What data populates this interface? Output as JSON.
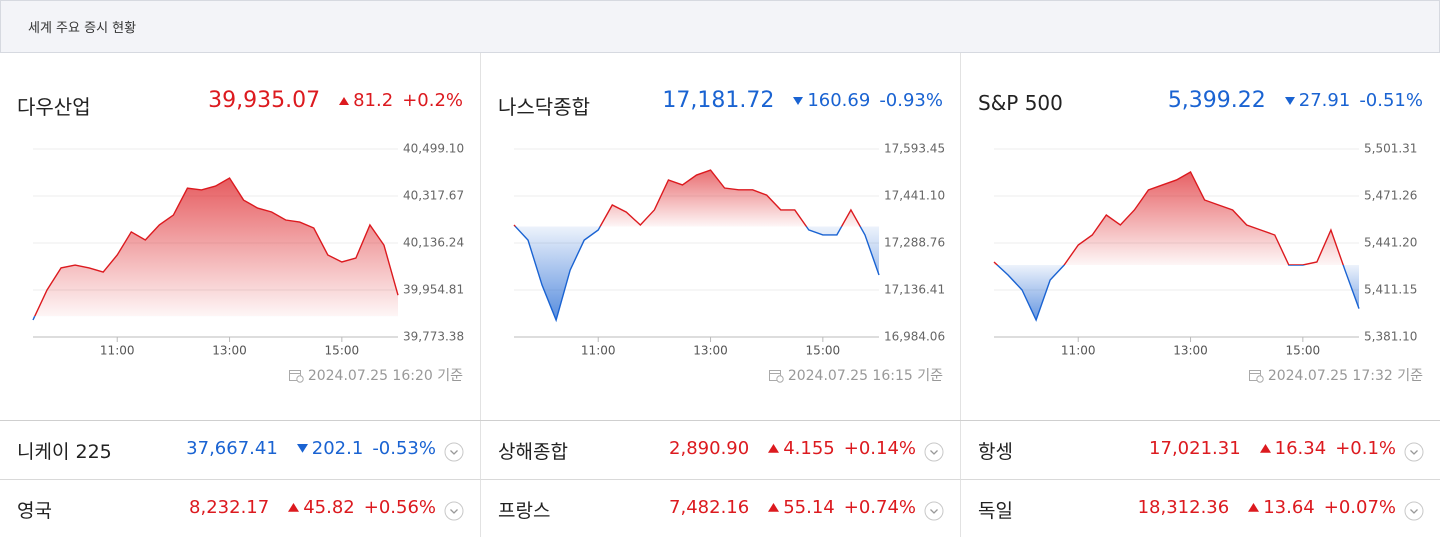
{
  "colors": {
    "up": "#dc1a1f",
    "down": "#1a63d2"
  },
  "header": {
    "title": "세계 주요 증시 현황"
  },
  "panels": [
    {
      "name": "다우산업",
      "price": "39,935.07",
      "change": "81.2",
      "change_pct": "+0.2%",
      "direction": "up",
      "updated": "2024.07.25 16:20 기준",
      "chart": {
        "type": "area",
        "x": [
          "09:30",
          "09:45",
          "10:00",
          "10:15",
          "10:30",
          "10:45",
          "11:00",
          "11:15",
          "11:30",
          "11:45",
          "12:00",
          "12:15",
          "12:30",
          "12:45",
          "13:00",
          "13:15",
          "13:30",
          "13:45",
          "14:00",
          "14:15",
          "14:30",
          "14:45",
          "15:00",
          "15:15",
          "15:30",
          "15:45",
          "16:00"
        ],
        "values": [
          39839,
          39955,
          40040,
          40051,
          40040,
          40024,
          40090,
          40179,
          40148,
          40206,
          40244,
          40348,
          40341,
          40356,
          40387,
          40302,
          40271,
          40256,
          40225,
          40217,
          40194,
          40090,
          40063,
          40078,
          40206,
          40128,
          39935
        ],
        "baseline": 39853.87,
        "xlim": [
          "09:30",
          "16:00"
        ],
        "xticks": [
          "11:00",
          "13:00",
          "15:00"
        ],
        "ylim": [
          39773.38,
          40499.1
        ],
        "yticks": [
          {
            "value": 40499.1,
            "label": "40,499.10"
          },
          {
            "value": 40317.67,
            "label": "40,317.67"
          },
          {
            "value": 40136.24,
            "label": "40,136.24"
          },
          {
            "value": 39954.81,
            "label": "39,954.81"
          },
          {
            "value": 39773.38,
            "label": "39,773.38"
          }
        ]
      }
    },
    {
      "name": "나스닥종합",
      "price": "17,181.72",
      "change": "160.69",
      "change_pct": "-0.93%",
      "direction": "down",
      "updated": "2024.07.25 16:15 기준",
      "chart": {
        "type": "area",
        "x": [
          "09:30",
          "09:45",
          "10:00",
          "10:15",
          "10:30",
          "10:45",
          "11:00",
          "11:15",
          "11:30",
          "11:45",
          "12:00",
          "12:15",
          "12:30",
          "12:45",
          "13:00",
          "13:15",
          "13:30",
          "13:45",
          "14:00",
          "14:15",
          "14:30",
          "14:45",
          "15:00",
          "15:15",
          "15:30",
          "15:45",
          "16:00"
        ],
        "values": [
          17347,
          17298,
          17152,
          17039,
          17201,
          17298,
          17331,
          17412,
          17389,
          17347,
          17396,
          17493,
          17477,
          17509,
          17525,
          17467,
          17461,
          17461,
          17444,
          17396,
          17396,
          17331,
          17315,
          17315,
          17396,
          17315,
          17185
        ],
        "baseline": 17342.41,
        "xlim": [
          "09:30",
          "16:00"
        ],
        "xticks": [
          "11:00",
          "13:00",
          "15:00"
        ],
        "ylim": [
          16984.06,
          17593.45
        ],
        "yticks": [
          {
            "value": 17593.45,
            "label": "17,593.45"
          },
          {
            "value": 17441.1,
            "label": "17,441.10"
          },
          {
            "value": 17288.76,
            "label": "17,288.76"
          },
          {
            "value": 17136.41,
            "label": "17,136.41"
          },
          {
            "value": 16984.06,
            "label": "16,984.06"
          }
        ]
      }
    },
    {
      "name": "S&P 500",
      "price": "5,399.22",
      "change": "27.91",
      "change_pct": "-0.51%",
      "direction": "down",
      "updated": "2024.07.25 17:32 기준",
      "chart": {
        "type": "area",
        "x": [
          "09:30",
          "09:45",
          "10:00",
          "10:15",
          "10:30",
          "10:45",
          "11:00",
          "11:15",
          "11:30",
          "11:45",
          "12:00",
          "12:15",
          "12:30",
          "12:45",
          "13:00",
          "13:15",
          "13:30",
          "13:45",
          "14:00",
          "14:15",
          "14:30",
          "14:45",
          "15:00",
          "15:15",
          "15:30",
          "15:45",
          "16:00"
        ],
        "values": [
          5429.06,
          5420.75,
          5411.15,
          5391.97,
          5417.55,
          5427.14,
          5439.93,
          5446.32,
          5459.11,
          5452.72,
          5462.31,
          5475.11,
          5478.31,
          5481.51,
          5486.61,
          5468.71,
          5465.51,
          5462.31,
          5452.72,
          5449.51,
          5446.32,
          5427.14,
          5427.14,
          5429.06,
          5449.51,
          5423.91,
          5399.22
        ],
        "baseline": 5427.13,
        "xlim": [
          "09:30",
          "16:00"
        ],
        "xticks": [
          "11:00",
          "13:00",
          "15:00"
        ],
        "ylim": [
          5381.1,
          5501.31
        ],
        "yticks": [
          {
            "value": 5501.31,
            "label": "5,501.31"
          },
          {
            "value": 5471.26,
            "label": "5,471.26"
          },
          {
            "value": 5441.2,
            "label": "5,441.20"
          },
          {
            "value": 5411.15,
            "label": "5,411.15"
          },
          {
            "value": 5381.1,
            "label": "5,381.10"
          }
        ]
      }
    }
  ],
  "rows": [
    [
      {
        "name": "니케이 225",
        "price": "37,667.41",
        "change": "202.1",
        "change_pct": "-0.53%",
        "direction": "down"
      },
      {
        "name": "상해종합",
        "price": "2,890.90",
        "change": "4.155",
        "change_pct": "+0.14%",
        "direction": "up"
      },
      {
        "name": "항셍",
        "price": "17,021.31",
        "change": "16.34",
        "change_pct": "+0.1%",
        "direction": "up"
      }
    ],
    [
      {
        "name": "영국",
        "price": "8,232.17",
        "change": "45.82",
        "change_pct": "+0.56%",
        "direction": "up"
      },
      {
        "name": "프랑스",
        "price": "7,482.16",
        "change": "55.14",
        "change_pct": "+0.74%",
        "direction": "up"
      },
      {
        "name": "독일",
        "price": "18,312.36",
        "change": "13.64",
        "change_pct": "+0.07%",
        "direction": "up"
      }
    ]
  ]
}
